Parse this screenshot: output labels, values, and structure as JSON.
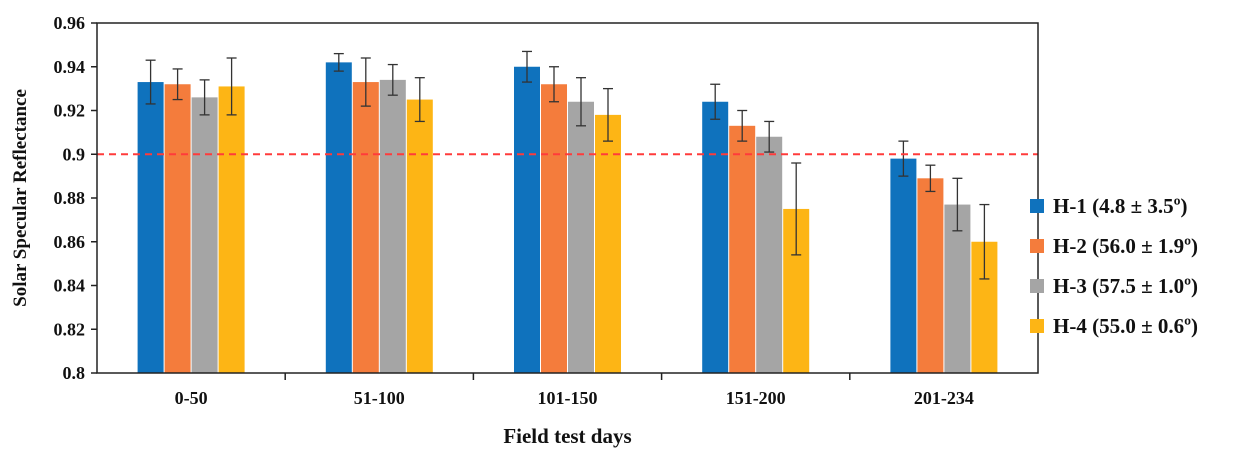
{
  "chart_data": {
    "type": "bar",
    "xlabel": "Field test days",
    "ylabel": "Solar Specular Reflectance",
    "categories": [
      "0-50",
      "51-100",
      "101-150",
      "151-200",
      "201-234"
    ],
    "ylim": [
      0.8,
      0.96
    ],
    "yticks": [
      0.8,
      0.82,
      0.84,
      0.86,
      0.88,
      0.9,
      0.92,
      0.94,
      0.96
    ],
    "ytick_labels": [
      "0.8",
      "0.82",
      "0.84",
      "0.86",
      "0.88",
      "0.9",
      "0.92",
      "0.94",
      "0.96"
    ],
    "reference_line": {
      "y": 0.9,
      "style": "dashed",
      "color": "#ff3b3b"
    },
    "grid": false,
    "legend_position": "right",
    "series": [
      {
        "name": "H-1 (4.8 ± 3.5º)",
        "color": "#0f72bd",
        "values": [
          0.933,
          0.942,
          0.94,
          0.924,
          0.898
        ],
        "errors": [
          0.01,
          0.004,
          0.007,
          0.008,
          0.008
        ]
      },
      {
        "name": "H-2 (56.0 ± 1.9º)",
        "color": "#f47c3c",
        "values": [
          0.932,
          0.933,
          0.932,
          0.913,
          0.889
        ],
        "errors": [
          0.007,
          0.011,
          0.008,
          0.007,
          0.006
        ]
      },
      {
        "name": "H-3 (57.5 ± 1.0º)",
        "color": "#a5a5a5",
        "values": [
          0.926,
          0.934,
          0.924,
          0.908,
          0.877
        ],
        "errors": [
          0.008,
          0.007,
          0.011,
          0.007,
          0.012
        ]
      },
      {
        "name": "H-4 (55.0 ± 0.6º)",
        "color": "#fdb515",
        "values": [
          0.931,
          0.925,
          0.918,
          0.875,
          0.86
        ],
        "errors": [
          0.013,
          0.01,
          0.012,
          0.021,
          0.017
        ]
      }
    ]
  }
}
